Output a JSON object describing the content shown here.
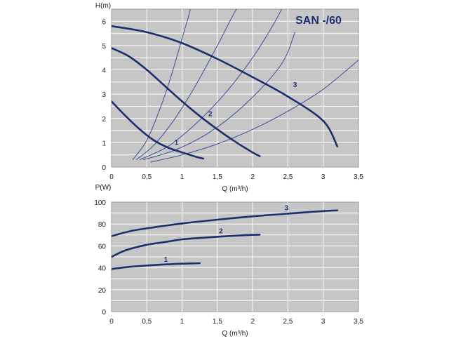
{
  "colors": {
    "plot_bg": "#c6c6c6",
    "grid": "#ffffff",
    "pump_curve": "#1b2f6e",
    "system_curve": "#3b4f98",
    "text": "#222222"
  },
  "chart_data": [
    {
      "type": "line",
      "title": "SAN -/60",
      "xlabel": "Q (m³/h)",
      "ylabel": "H(m)",
      "xlim": [
        0,
        3.5
      ],
      "ylim": [
        0,
        6.5
      ],
      "x_ticks": [
        "0",
        "0,5",
        "1",
        "1,5",
        "2",
        "2,5",
        "3",
        "3,5"
      ],
      "y_ticks": [
        "0",
        "1",
        "2",
        "3",
        "4",
        "5",
        "6"
      ],
      "grid": true,
      "series": [
        {
          "name": "1",
          "role": "pump-curve",
          "x": [
            0,
            0.2,
            0.4,
            0.6,
            0.8,
            1.0,
            1.2,
            1.3
          ],
          "y": [
            2.7,
            2.1,
            1.55,
            1.1,
            0.8,
            0.6,
            0.42,
            0.35
          ]
        },
        {
          "name": "2",
          "role": "pump-curve",
          "x": [
            0,
            0.25,
            0.5,
            0.75,
            1.0,
            1.25,
            1.5,
            1.75,
            2.0,
            2.1
          ],
          "y": [
            4.9,
            4.55,
            4.0,
            3.35,
            2.7,
            2.1,
            1.55,
            1.05,
            0.6,
            0.45
          ]
        },
        {
          "name": "3",
          "role": "pump-curve",
          "x": [
            0,
            0.5,
            1.0,
            1.5,
            2.0,
            2.5,
            3.0,
            3.2
          ],
          "y": [
            5.8,
            5.55,
            5.1,
            4.45,
            3.7,
            2.9,
            1.9,
            0.85
          ]
        }
      ],
      "system_curves": [
        {
          "x": [
            0.3,
            0.5,
            0.7,
            0.85,
            1.0,
            1.1,
            1.15
          ],
          "y": [
            0.3,
            1.1,
            2.5,
            3.8,
            5.3,
            6.3,
            7.0
          ]
        },
        {
          "x": [
            0.35,
            0.6,
            0.9,
            1.2,
            1.5,
            1.75,
            1.9
          ],
          "y": [
            0.3,
            0.9,
            2.0,
            3.4,
            5.0,
            6.4,
            7.0
          ]
        },
        {
          "x": [
            0.4,
            0.8,
            1.2,
            1.6,
            2.0,
            2.3,
            2.5
          ],
          "y": [
            0.3,
            0.85,
            1.8,
            3.0,
            4.5,
            5.9,
            7.0
          ]
        },
        {
          "x": [
            0.45,
            0.9,
            1.4,
            1.9,
            2.4,
            2.6
          ],
          "y": [
            0.3,
            0.7,
            1.45,
            2.6,
            4.2,
            5.55
          ]
        },
        {
          "x": [
            0.55,
            1.0,
            1.5,
            2.0,
            2.5,
            3.0,
            3.5
          ],
          "y": [
            0.2,
            0.5,
            0.95,
            1.55,
            2.3,
            3.2,
            4.4
          ]
        }
      ],
      "annotations": [
        {
          "text": "1",
          "x": 0.92,
          "y": 0.92
        },
        {
          "text": "2",
          "x": 1.4,
          "y": 2.1
        },
        {
          "text": "3",
          "x": 2.6,
          "y": 3.3
        }
      ]
    },
    {
      "type": "line",
      "title": "",
      "xlabel": "Q (m³/h)",
      "ylabel": "P(W)",
      "xlim": [
        0,
        3.5
      ],
      "ylim": [
        0,
        100
      ],
      "x_ticks": [
        "0",
        "0,5",
        "1",
        "1,5",
        "2",
        "2,5",
        "3",
        "3,5"
      ],
      "y_ticks": [
        "0",
        "20",
        "40",
        "60",
        "80",
        "100"
      ],
      "grid": true,
      "series": [
        {
          "name": "1",
          "x": [
            0,
            0.2,
            0.4,
            0.6,
            0.8,
            1.0,
            1.25
          ],
          "y": [
            39,
            40.5,
            41.6,
            42.5,
            43.2,
            43.8,
            44.2
          ]
        },
        {
          "name": "2",
          "x": [
            0,
            0.2,
            0.5,
            0.8,
            1.0,
            1.3,
            1.6,
            1.9,
            2.1
          ],
          "y": [
            50,
            56,
            61,
            64,
            66,
            67.5,
            68.8,
            69.8,
            70.3
          ]
        },
        {
          "name": "3",
          "x": [
            0,
            0.3,
            0.6,
            1.0,
            1.5,
            2.0,
            2.5,
            3.0,
            3.2
          ],
          "y": [
            69,
            74,
            77,
            80.5,
            84,
            87,
            89.5,
            91.8,
            92.5
          ]
        }
      ],
      "annotations": [
        {
          "text": "1",
          "x": 0.77,
          "y": 45.5
        },
        {
          "text": "2",
          "x": 1.55,
          "y": 71.5
        },
        {
          "text": "3",
          "x": 2.48,
          "y": 92.5
        }
      ]
    }
  ]
}
